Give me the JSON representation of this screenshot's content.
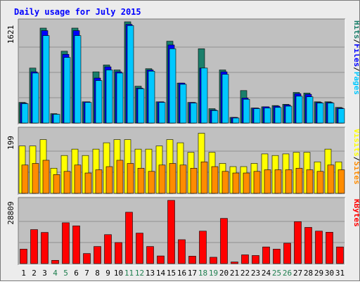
{
  "chart_data": {
    "type": "bar",
    "title": "Daily usage for July 2015",
    "colors": {
      "title": "#0000ff",
      "plot_background": "#c0c0c0",
      "gridline": "#909090",
      "hits": "#1b7f6b",
      "files": "#0000ff",
      "pages": "#00c8ff",
      "visits": "#ffff00",
      "sites": "#ff8c00",
      "kbytes": "#ff0000",
      "weekend_label": "#1f7f4f",
      "weekday_label": "#000000"
    },
    "days": [
      "1",
      "2",
      "3",
      "4",
      "5",
      "6",
      "7",
      "8",
      "9",
      "10",
      "11",
      "12",
      "13",
      "14",
      "15",
      "16",
      "17",
      "18",
      "19",
      "20",
      "21",
      "22",
      "23",
      "24",
      "25",
      "26",
      "27",
      "28",
      "29",
      "30",
      "31"
    ],
    "weekend_days": [
      "4",
      "5",
      "11",
      "12",
      "18",
      "19",
      "25",
      "26"
    ],
    "panels": [
      {
        "id": "hits",
        "ymax_label": "1621",
        "ymax": 1621,
        "legend": [
          {
            "text": "Hits",
            "color": "#1b7f6b"
          },
          {
            "text": "/",
            "color": "#000000"
          },
          {
            "text": "Files",
            "color": "#0000ff"
          },
          {
            "text": "/",
            "color": "#000000"
          },
          {
            "text": "Pages",
            "color": "#00c8ff"
          }
        ],
        "series": [
          {
            "name": "Hits",
            "color": "#1b7f6b",
            "values": [
              330,
              880,
              1520,
              150,
              1150,
              1520,
              340,
              820,
              930,
              850,
              1621,
              590,
              870,
              340,
              1310,
              640,
              330,
              1190,
              230,
              850,
              90,
              520,
              240,
              260,
              280,
              300,
              490,
              480,
              340,
              340,
              250
            ]
          },
          {
            "name": "Files",
            "color": "#0000ff",
            "values": [
              320,
              820,
              1480,
              140,
              1100,
              1480,
              340,
              720,
              900,
              820,
              1580,
              560,
              850,
              340,
              1250,
              640,
              330,
              880,
              210,
              820,
              90,
              400,
              240,
              260,
              270,
              290,
              470,
              460,
              330,
              330,
              240
            ]
          },
          {
            "name": "Pages",
            "color": "#00c8ff",
            "values": [
              310,
              800,
              1400,
              140,
              1050,
              1400,
              330,
              680,
              850,
              800,
              1560,
              550,
              830,
              330,
              1190,
              620,
              320,
              880,
              200,
              780,
              80,
              380,
              230,
              240,
              250,
              270,
              430,
              420,
              320,
              320,
              230
            ]
          }
        ]
      },
      {
        "id": "visits",
        "ymax_label": "199",
        "ymax": 199,
        "legend": [
          {
            "text": "Visits",
            "color": "#ffff00"
          },
          {
            "text": "/",
            "color": "#000000"
          },
          {
            "text": "Sites",
            "color": "#ff8c00"
          }
        ],
        "series": [
          {
            "name": "Visits",
            "color": "#ffff00",
            "values": [
              149,
              149,
              169,
              79,
              119,
              139,
              119,
              139,
              159,
              169,
              169,
              139,
              139,
              149,
              169,
              159,
              129,
              189,
              129,
              94,
              84,
              84,
              94,
              124,
              119,
              124,
              129,
              129,
              99,
              139,
              99
            ]
          },
          {
            "name": "Sites",
            "color": "#ff8c00",
            "values": [
              89,
              94,
              104,
              59,
              69,
              89,
              64,
              74,
              84,
              104,
              94,
              79,
              69,
              89,
              94,
              89,
              79,
              99,
              84,
              69,
              64,
              64,
              69,
              74,
              74,
              74,
              79,
              74,
              69,
              89,
              74
            ]
          }
        ]
      },
      {
        "id": "kbytes",
        "ymax_label": "28809",
        "ymax": 28809,
        "legend": [
          {
            "text": "KBytes",
            "color": "#ff0000"
          }
        ],
        "series": [
          {
            "name": "KBytes",
            "color": "#ff0000",
            "values": [
              6600,
              15500,
              14200,
              1500,
              18600,
              17200,
              4600,
              7800,
              13200,
              9600,
              23400,
              13900,
              7800,
              3500,
              28809,
              10900,
              3400,
              14800,
              2900,
              20600,
              750,
              4000,
              3700,
              7600,
              6600,
              9300,
              19100,
              16500,
              14800,
              14300,
              7600
            ]
          }
        ]
      }
    ]
  }
}
